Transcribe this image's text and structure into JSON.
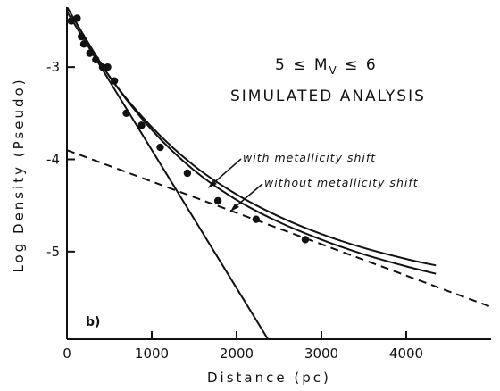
{
  "chart_data": {
    "type": "scatter",
    "panel_label": "b)",
    "title_lines": [
      "5 ≤ M",
      "V",
      " ≤ 6"
    ],
    "subtitle": "SIMULATED ANALYSIS",
    "xlabel": "Distance   (pc)",
    "ylabel": "Log Density (Pseudo)",
    "xlim": [
      0,
      5000
    ],
    "ylim": [
      -5.95,
      -2.35
    ],
    "x_ticks": [
      0,
      1000,
      2000,
      3000,
      4000
    ],
    "x_tick_labels": [
      "0",
      "1000",
      "2000",
      "3000",
      "4000"
    ],
    "y_ticks": [
      -3,
      -4,
      -5
    ],
    "y_tick_labels": [
      "-3",
      "-4",
      "-5"
    ],
    "grid": false,
    "legend": "none",
    "annotations": [
      {
        "text": "with metallicity shift",
        "series": "with metallicity shift"
      },
      {
        "text": "without metallicity shift",
        "series": "without metallicity shift"
      }
    ],
    "points": {
      "x": [
        50,
        120,
        170,
        200,
        270,
        340,
        420,
        480,
        560,
        700,
        880,
        1100,
        1420,
        1780,
        2230,
        2810
      ],
      "y": [
        -2.5,
        -2.47,
        -2.67,
        -2.75,
        -2.85,
        -2.92,
        -3.0,
        -3.0,
        -3.15,
        -3.5,
        -3.63,
        -3.87,
        -4.15,
        -4.45,
        -4.65,
        -4.87
      ]
    },
    "series": [
      {
        "name": "with metallicity shift",
        "style": "solid",
        "x": [
          0,
          500,
          1000,
          1500,
          2000,
          2500,
          3000,
          3500,
          4000,
          4350
        ],
        "y": [
          -2.35,
          -3.1,
          -3.65,
          -4.07,
          -4.38,
          -4.62,
          -4.81,
          -4.96,
          -5.08,
          -5.15
        ]
      },
      {
        "name": "without metallicity shift",
        "style": "solid",
        "x": [
          0,
          500,
          1000,
          1500,
          2000,
          2500,
          3000,
          3500,
          4000,
          4350
        ],
        "y": [
          -2.35,
          -3.1,
          -3.68,
          -4.12,
          -4.44,
          -4.68,
          -4.87,
          -5.03,
          -5.16,
          -5.24
        ]
      },
      {
        "name": "steep linear component",
        "style": "solid",
        "x": [
          0,
          2370
        ],
        "y": [
          -2.4,
          -5.95
        ]
      },
      {
        "name": "shallow linear component",
        "style": "dashed",
        "x": [
          0,
          5000
        ],
        "y": [
          -3.9,
          -5.6
        ]
      }
    ]
  },
  "colors": {
    "ink": "#111111",
    "background": "#ffffff"
  }
}
